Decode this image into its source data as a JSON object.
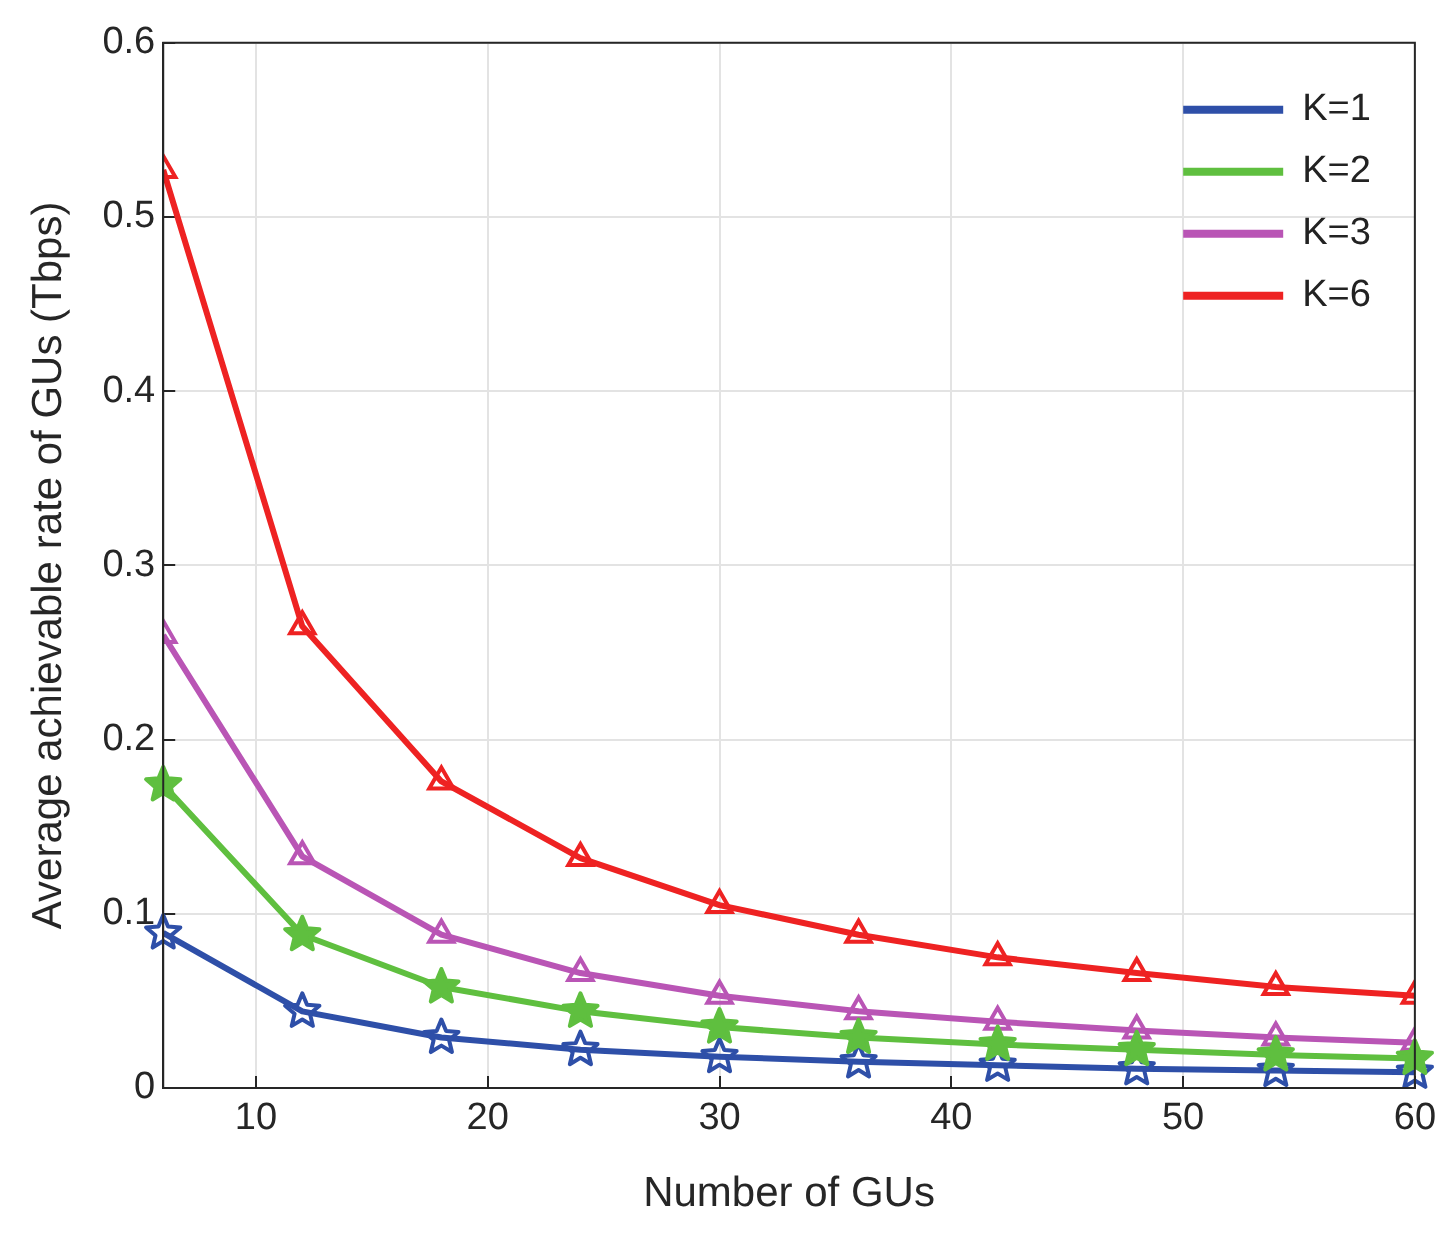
{
  "chart_data": {
    "type": "line",
    "xlabel": "Number of GUs",
    "ylabel": "Average achievable rate of GUs (Tbps)",
    "x": [
      6,
      12,
      18,
      24,
      30,
      36,
      42,
      48,
      54,
      60
    ],
    "series": [
      {
        "name": "K=1",
        "color": "#2e4fa8",
        "marker": "star",
        "values": [
          0.089,
          0.044,
          0.029,
          0.022,
          0.018,
          0.015,
          0.013,
          0.011,
          0.01,
          0.009
        ]
      },
      {
        "name": "K=2",
        "color": "#5fbf3f",
        "marker": "star",
        "values": [
          0.174,
          0.088,
          0.058,
          0.044,
          0.035,
          0.029,
          0.025,
          0.022,
          0.019,
          0.017
        ]
      },
      {
        "name": "K=3",
        "color": "#b955b5",
        "marker": "triangle",
        "values": [
          0.26,
          0.133,
          0.088,
          0.066,
          0.053,
          0.044,
          0.038,
          0.033,
          0.029,
          0.026
        ]
      },
      {
        "name": "K=6",
        "color": "#ee2222",
        "marker": "triangle",
        "values": [
          0.527,
          0.265,
          0.176,
          0.132,
          0.105,
          0.088,
          0.075,
          0.066,
          0.058,
          0.053
        ]
      }
    ],
    "xlim": [
      6,
      60
    ],
    "xticks": [
      10,
      20,
      30,
      40,
      50,
      60
    ],
    "ylim": [
      0,
      0.6
    ],
    "yticks": [
      0,
      0.1,
      0.2,
      0.3,
      0.4,
      0.5,
      0.6
    ],
    "grid": true,
    "legend": "top right",
    "line_style": "solid"
  }
}
